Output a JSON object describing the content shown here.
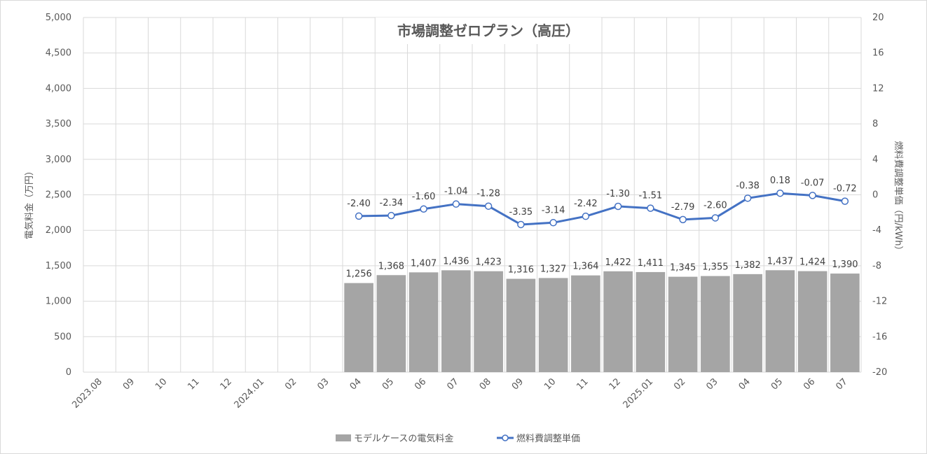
{
  "chart_data": {
    "type": "bar",
    "title": "市場調整ゼロプラン（高圧）",
    "ylabel": "電気料金（万円）",
    "y2label": "燃料費調整単価（円/kWh）",
    "ylim": [
      0,
      5000
    ],
    "y2lim": [
      -20,
      20
    ],
    "yticks": [
      "0",
      "500",
      "1,000",
      "1,500",
      "2,000",
      "2,500",
      "3,000",
      "3,500",
      "4,000",
      "4,500",
      "5,000"
    ],
    "y2ticks": [
      "-20",
      "-16",
      "-12",
      "-8",
      "-4",
      "0",
      "4",
      "8",
      "12",
      "16",
      "20"
    ],
    "categories": [
      "2023.08",
      "09",
      "10",
      "11",
      "12",
      "2024.01",
      "02",
      "03",
      "04",
      "05",
      "06",
      "07",
      "08",
      "09",
      "10",
      "11",
      "12",
      "2025.01",
      "02",
      "03",
      "04",
      "05",
      "06",
      "07"
    ],
    "series": [
      {
        "name": "モデルケースの電気料金",
        "kind": "bar",
        "axis": "left",
        "color": "#a5a5a5",
        "values": [
          null,
          null,
          null,
          null,
          null,
          null,
          null,
          null,
          1256,
          1368,
          1407,
          1436,
          1423,
          1316,
          1327,
          1364,
          1422,
          1411,
          1345,
          1355,
          1382,
          1437,
          1424,
          1390
        ],
        "labels": [
          null,
          null,
          null,
          null,
          null,
          null,
          null,
          null,
          "1,256",
          "1,368",
          "1,407",
          "1,436",
          "1,423",
          "1,316",
          "1,327",
          "1,364",
          "1,422",
          "1,411",
          "1,345",
          "1,355",
          "1,382",
          "1,437",
          "1,424",
          "1,390"
        ]
      },
      {
        "name": "燃料費調整単価",
        "kind": "line",
        "axis": "right",
        "color": "#4472c4",
        "values": [
          null,
          null,
          null,
          null,
          null,
          null,
          null,
          null,
          -2.4,
          -2.34,
          -1.6,
          -1.04,
          -1.28,
          -3.35,
          -3.14,
          -2.42,
          -1.3,
          -1.51,
          -2.79,
          -2.6,
          -0.38,
          0.18,
          -0.07,
          -0.72
        ],
        "labels": [
          null,
          null,
          null,
          null,
          null,
          null,
          null,
          null,
          "-2.40",
          "-2.34",
          "-1.60",
          "-1.04",
          "-1.28",
          "-3.35",
          "-3.14",
          "-2.42",
          "-1.30",
          "-1.51",
          "-2.79",
          "-2.60",
          "-0.38",
          "0.18",
          "-0.07",
          "-0.72"
        ]
      }
    ],
    "grid": true,
    "legend_position": "bottom"
  }
}
